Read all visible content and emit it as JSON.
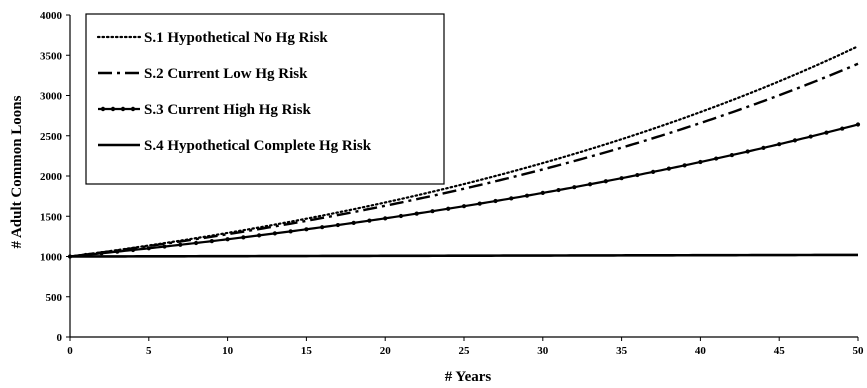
{
  "chart_data": {
    "type": "line",
    "xlabel": "# Years",
    "ylabel": "# Adult  Common Loons",
    "xlim": [
      0,
      50
    ],
    "ylim": [
      0,
      4000
    ],
    "x_ticks": [
      "0",
      "5",
      "10",
      "15",
      "20",
      "25",
      "30",
      "35",
      "40",
      "45",
      "50"
    ],
    "y_ticks": [
      "0",
      "500",
      "1000",
      "1500",
      "2000",
      "2500",
      "3000",
      "3500",
      "4000"
    ],
    "grid": false,
    "legend_position": "top-left",
    "x": [
      0,
      5,
      10,
      15,
      20,
      25,
      30,
      35,
      40,
      45,
      50
    ],
    "series": [
      {
        "name": "S.1 Hypothetical No Hg Risk",
        "style": "dotted",
        "values": [
          1000,
          1137,
          1293,
          1470,
          1671,
          1900,
          2161,
          2457,
          2794,
          3176,
          3612
        ]
      },
      {
        "name": "S.2 Current Low Hg Risk",
        "style": "dash-dot",
        "values": [
          1000,
          1130,
          1277,
          1443,
          1630,
          1842,
          2082,
          2352,
          2658,
          3003,
          3394
        ]
      },
      {
        "name": "S.3 Current High Hg Risk",
        "style": "solid-markers",
        "values": [
          1000,
          1102,
          1214,
          1338,
          1474,
          1625,
          1790,
          1973,
          2174,
          2395,
          2640
        ]
      },
      {
        "name": "S.4 Hypothetical Complete Hg Risk",
        "style": "solid",
        "values": [
          1000,
          1002,
          1004,
          1006,
          1008,
          1010,
          1012,
          1014,
          1016,
          1018,
          1020
        ]
      }
    ]
  }
}
